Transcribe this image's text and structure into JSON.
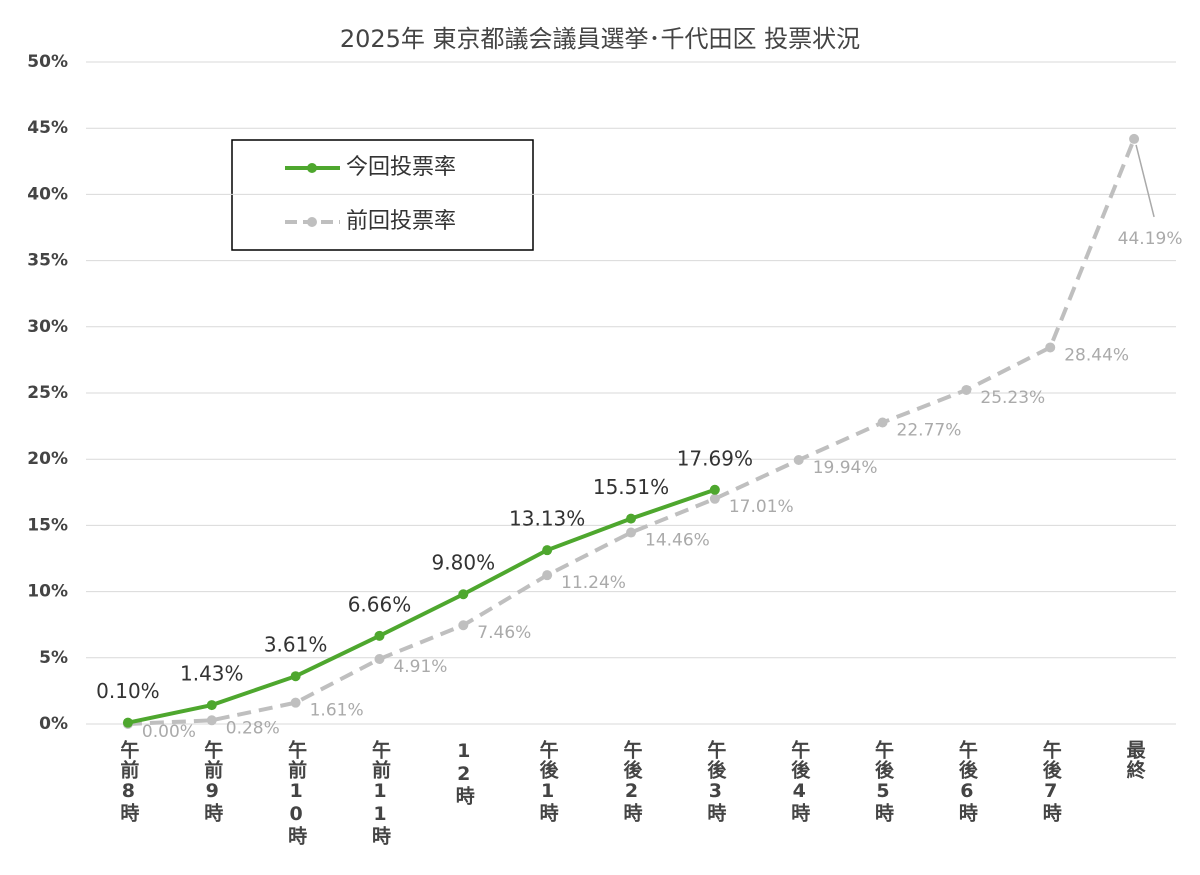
{
  "chart_data": {
    "type": "line",
    "title": "2025年 東京都議会議員選挙･千代田区 投票状況",
    "categories": [
      "午前8時",
      "午前9時",
      "午前10時",
      "午前11時",
      "12時",
      "午後1時",
      "午後2時",
      "午後3時",
      "午後4時",
      "午後5時",
      "午後6時",
      "午後7時",
      "最終"
    ],
    "series": [
      {
        "name": "今回投票率",
        "color": "#4ea72e",
        "dashed": false,
        "values": [
          0.1,
          1.43,
          3.61,
          6.66,
          9.8,
          13.13,
          15.51,
          17.69,
          null,
          null,
          null,
          null,
          null
        ],
        "value_labels": [
          "0.10%",
          "1.43%",
          "3.61%",
          "6.66%",
          "9.80%",
          "13.13%",
          "15.51%",
          "17.69%",
          null,
          null,
          null,
          null,
          null
        ]
      },
      {
        "name": "前回投票率",
        "color": "#bfbfbf",
        "dashed": true,
        "values": [
          0.0,
          0.28,
          1.61,
          4.91,
          7.46,
          11.24,
          14.46,
          17.01,
          19.94,
          22.77,
          25.23,
          28.44,
          44.19
        ],
        "value_labels": [
          "0.00%",
          "0.28%",
          "1.61%",
          "4.91%",
          "7.46%",
          "11.24%",
          "14.46%",
          "17.01%",
          "19.94%",
          "22.77%",
          "25.23%",
          "28.44%",
          "44.19%"
        ]
      }
    ],
    "ylim": [
      0,
      50
    ],
    "yticks": [
      {
        "value": 0,
        "label": "0%"
      },
      {
        "value": 5,
        "label": "5%"
      },
      {
        "value": 10,
        "label": "10%"
      },
      {
        "value": 15,
        "label": "15%"
      },
      {
        "value": 20,
        "label": "20%"
      },
      {
        "value": 25,
        "label": "25%"
      },
      {
        "value": 30,
        "label": "30%"
      },
      {
        "value": 35,
        "label": "35%"
      },
      {
        "value": 40,
        "label": "40%"
      },
      {
        "value": 45,
        "label": "45%"
      },
      {
        "value": 50,
        "label": "50%"
      }
    ],
    "grid": true,
    "legend": "upper left"
  }
}
